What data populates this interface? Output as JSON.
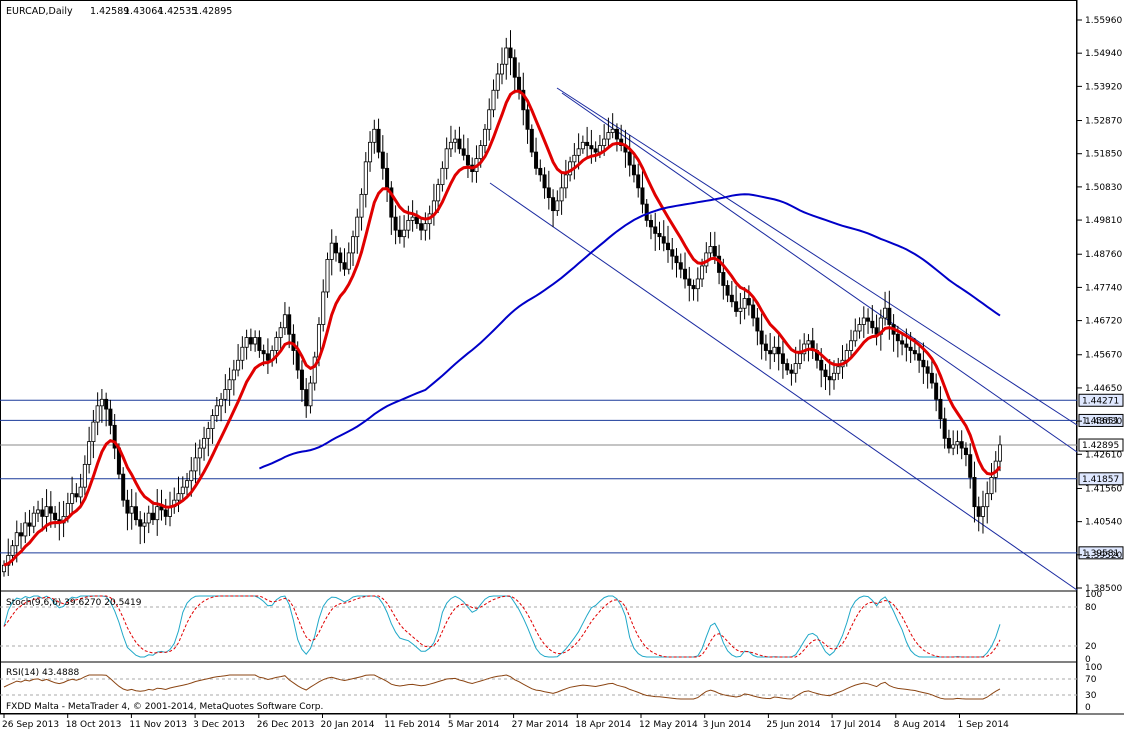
{
  "chart_data": [
    {
      "type": "candlestick",
      "title": "EURCAD,Daily",
      "ohlc": [
        "1.42589",
        "1.43064",
        "1.42535",
        "1.42895"
      ],
      "price_ticks": [
        "1.55960",
        "1.54940",
        "1.53920",
        "1.52870",
        "1.51850",
        "1.50830",
        "1.49810",
        "1.48760",
        "1.47740",
        "1.46720",
        "1.45670",
        "1.44650",
        "1.43630",
        "1.42610",
        "1.41560",
        "1.40540",
        "1.39520",
        "1.38500"
      ],
      "ylim": [
        1.385,
        1.5596
      ],
      "date_ticks": [
        "26 Sep 2013",
        "18 Oct 2013",
        "11 Nov 2013",
        "3 Dec 2013",
        "26 Dec 2013",
        "20 Jan 2014",
        "11 Feb 2014",
        "5 Mar 2014",
        "27 Mar 2014",
        "18 Apr 2014",
        "12 May 2014",
        "3 Jun 2014",
        "25 Jun 2014",
        "17 Jul 2014",
        "8 Aug 2014",
        "1 Sep 2014"
      ],
      "closes": [
        1.392,
        1.395,
        1.398,
        1.402,
        1.401,
        1.405,
        1.404,
        1.408,
        1.409,
        1.407,
        1.41,
        1.408,
        1.406,
        1.405,
        1.407,
        1.411,
        1.414,
        1.413,
        1.416,
        1.423,
        1.43,
        1.436,
        1.441,
        1.443,
        1.44,
        1.435,
        1.428,
        1.42,
        1.412,
        1.408,
        1.41,
        1.406,
        1.404,
        1.405,
        1.408,
        1.406,
        1.41,
        1.409,
        1.407,
        1.41,
        1.412,
        1.414,
        1.416,
        1.418,
        1.421,
        1.425,
        1.428,
        1.431,
        1.434,
        1.438,
        1.441,
        1.443,
        1.446,
        1.449,
        1.452,
        1.455,
        1.459,
        1.462,
        1.46,
        1.462,
        1.458,
        1.457,
        1.455,
        1.458,
        1.462,
        1.465,
        1.469,
        1.463,
        1.458,
        1.452,
        1.446,
        1.441,
        1.448,
        1.456,
        1.466,
        1.476,
        1.486,
        1.491,
        1.488,
        1.485,
        1.483,
        1.488,
        1.493,
        1.499,
        1.506,
        1.516,
        1.522,
        1.526,
        1.519,
        1.514,
        1.508,
        1.499,
        1.495,
        1.493,
        1.495,
        1.498,
        1.499,
        1.497,
        1.495,
        1.497,
        1.5,
        1.504,
        1.509,
        1.514,
        1.52,
        1.522,
        1.523,
        1.52,
        1.518,
        1.515,
        1.513,
        1.517,
        1.521,
        1.526,
        1.532,
        1.538,
        1.543,
        1.546,
        1.551,
        1.548,
        1.542,
        1.538,
        1.532,
        1.526,
        1.519,
        1.514,
        1.512,
        1.508,
        1.505,
        1.501,
        1.504,
        1.508,
        1.512,
        1.516,
        1.518,
        1.52,
        1.522,
        1.521,
        1.52,
        1.519,
        1.521,
        1.523,
        1.525,
        1.526,
        1.523,
        1.521,
        1.519,
        1.515,
        1.512,
        1.508,
        1.503,
        1.498,
        1.496,
        1.494,
        1.493,
        1.491,
        1.489,
        1.487,
        1.485,
        1.483,
        1.48,
        1.478,
        1.477,
        1.48,
        1.484,
        1.488,
        1.49,
        1.487,
        1.482,
        1.478,
        1.475,
        1.473,
        1.47,
        1.471,
        1.474,
        1.472,
        1.468,
        1.464,
        1.46,
        1.458,
        1.457,
        1.459,
        1.457,
        1.454,
        1.452,
        1.451,
        1.454,
        1.457,
        1.46,
        1.461,
        1.458,
        1.455,
        1.452,
        1.45,
        1.449,
        1.451,
        1.453,
        1.455,
        1.458,
        1.461,
        1.464,
        1.466,
        1.468,
        1.467,
        1.465,
        1.463,
        1.468,
        1.471,
        1.466,
        1.463,
        1.461,
        1.46,
        1.459,
        1.458,
        1.457,
        1.455,
        1.453,
        1.451,
        1.448,
        1.443,
        1.437,
        1.431,
        1.428,
        1.429,
        1.43,
        1.428,
        1.426,
        1.419,
        1.41,
        1.407,
        1.41,
        1.414,
        1.419,
        1.424,
        1.429
      ],
      "overlays": [
        {
          "name": "MA fast",
          "color": "#e00000"
        },
        {
          "name": "MA slow",
          "color": "#0000c8"
        }
      ],
      "levels": [
        {
          "price": 1.44271,
          "label": "1.44271"
        },
        {
          "price": 1.43651,
          "label": "1.43651"
        },
        {
          "price": 1.42895,
          "label": "1.42895",
          "current": true
        },
        {
          "price": 1.41857,
          "label": "1.41857"
        },
        {
          "price": 1.39581,
          "label": "1.39581"
        }
      ]
    },
    {
      "type": "line",
      "title": "Stoch(9,6,6) 39.6270 20.5419",
      "ticks": [
        "100",
        "80",
        "20",
        "0"
      ],
      "ylim": [
        0,
        100
      ],
      "colors": {
        "main": "#20a8c8",
        "signal": "#e00000"
      }
    },
    {
      "type": "line",
      "title": "RSI(14) 43.4888",
      "ticks": [
        "100",
        "70",
        "30",
        "0"
      ],
      "ylim": [
        0,
        100
      ],
      "colors": {
        "main": "#8b4513"
      }
    }
  ],
  "footer": "FXDD Malta - MetaTrader 4, © 2001-2014, MetaQuotes Software Corp."
}
